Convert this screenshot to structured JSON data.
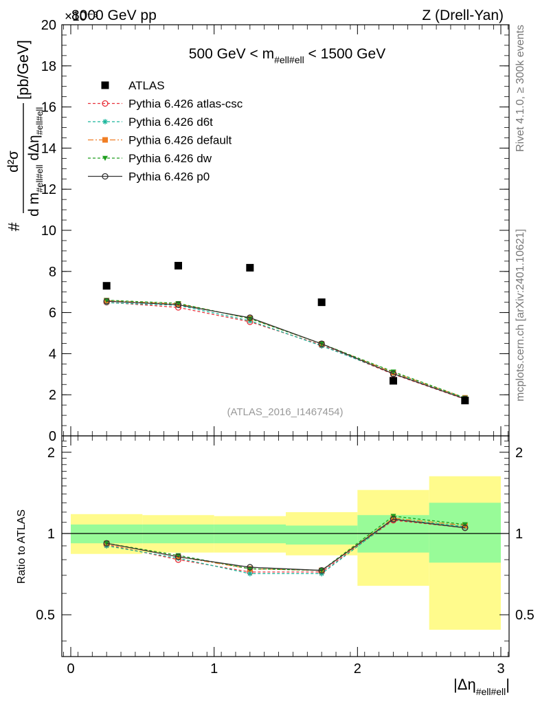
{
  "header": {
    "energy_label": "8000 GeV pp",
    "scale_label": "×10⁻³",
    "process_label": "Z (Drell-Yan)"
  },
  "side_labels": {
    "rivet": "Rivet 4.1.0, ≥ 300k events",
    "mcplots": "mcplots.cern.ch [arXiv:2401.10621]"
  },
  "chart_data": {
    "type": "line",
    "title": "500 GeV < m_#ell#ell < 1500 GeV",
    "title_parts": {
      "left": "500 GeV < m",
      "sub": "#ell#ell",
      "right": " < 1500 GeV"
    },
    "analysis_id": "(ATLAS_2016_I1467454)",
    "ylabel": "d²σ / d m_#ell#ell dΔη_#ell#ell [pb/GeV]",
    "ylabel_parts": {
      "hash": "#",
      "num": "d²σ",
      "den_a": "d m",
      "den_sub": "#ell#ell",
      "den_b": " dΔη",
      "den_sub2": "#ell#ell",
      "unit": "[pb/GeV]"
    },
    "xlabel": "|Δη_#ell#ell|",
    "xlabel_parts": {
      "main": "|Δη",
      "sub": "#ell#ell",
      "close": "|"
    },
    "ratio_ylabel": "Ratio to ATLAS",
    "xlim": [
      0,
      3
    ],
    "ylim": [
      0,
      20
    ],
    "ratio_ylim": [
      0.35,
      2.3
    ],
    "x_ticks": [
      "0",
      "1",
      "2",
      "3"
    ],
    "y_ticks": [
      "0",
      "2",
      "4",
      "6",
      "8",
      "10",
      "12",
      "14",
      "16",
      "18",
      "20"
    ],
    "ratio_ticks": [
      "0.5",
      "1",
      "2"
    ],
    "x": [
      0.25,
      0.75,
      1.25,
      1.75,
      2.25,
      2.75
    ],
    "bin_edges": [
      0,
      0.5,
      1.0,
      1.5,
      2.0,
      2.5,
      3.0
    ],
    "data": {
      "name": "ATLAS",
      "values": [
        7.3,
        8.28,
        8.18,
        6.5,
        2.68,
        1.72
      ],
      "band_green": [
        [
          0.92,
          1.08
        ],
        [
          0.92,
          1.08
        ],
        [
          0.92,
          1.08
        ],
        [
          0.91,
          1.07
        ],
        [
          0.85,
          1.17
        ],
        [
          0.78,
          1.3
        ]
      ],
      "band_yellow": [
        [
          0.84,
          1.18
        ],
        [
          0.85,
          1.17
        ],
        [
          0.85,
          1.16
        ],
        [
          0.83,
          1.2
        ],
        [
          0.64,
          1.45
        ],
        [
          0.44,
          1.63
        ]
      ]
    },
    "series": [
      {
        "name": "Pythia 6.426 atlas-csc",
        "color": "#e8303a",
        "dash": "4,3",
        "marker": "open-circle",
        "values": [
          6.5,
          6.25,
          5.55,
          4.42,
          3.0,
          1.78
        ],
        "ratio": [
          0.91,
          0.8,
          0.72,
          0.72,
          1.12,
          1.05
        ]
      },
      {
        "name": "Pythia 6.426 d6t",
        "color": "#17b59a",
        "dash": "4,3",
        "marker": "asterisk",
        "values": [
          6.48,
          6.35,
          5.6,
          4.38,
          3.05,
          1.8
        ],
        "ratio": [
          0.9,
          0.81,
          0.71,
          0.71,
          1.13,
          1.06
        ]
      },
      {
        "name": "Pythia 6.426 default",
        "color": "#f07e24",
        "dash": "8,3,2,3",
        "marker": "filled-square",
        "values": [
          6.58,
          6.42,
          5.72,
          4.48,
          3.08,
          1.85
        ],
        "ratio": [
          0.92,
          0.82,
          0.74,
          0.73,
          1.14,
          1.07
        ]
      },
      {
        "name": "Pythia 6.426 dw",
        "color": "#1e9e1e",
        "dash": "4,3",
        "marker": "filled-triangle-down",
        "values": [
          6.6,
          6.45,
          5.7,
          4.48,
          3.12,
          1.85
        ],
        "ratio": [
          0.92,
          0.83,
          0.74,
          0.73,
          1.16,
          1.08
        ]
      },
      {
        "name": "Pythia 6.426 p0",
        "color": "#333333",
        "dash": "",
        "marker": "open-circle",
        "values": [
          6.55,
          6.38,
          5.75,
          4.48,
          3.02,
          1.8
        ],
        "ratio": [
          0.92,
          0.82,
          0.75,
          0.73,
          1.13,
          1.05
        ]
      }
    ],
    "colors": {
      "band_green": "#98fb98",
      "band_yellow": "#fffb8c",
      "data_marker": "#000000"
    }
  }
}
